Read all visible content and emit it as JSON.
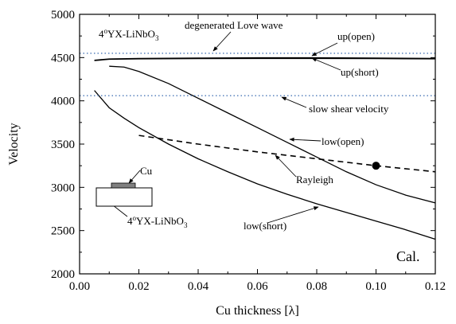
{
  "chart_data": {
    "type": "line",
    "title": "",
    "xlabel": "Cu thickness [λ]",
    "ylabel": "Velocity",
    "xlim": [
      0.0,
      0.12
    ],
    "ylim": [
      2000,
      5000
    ],
    "x_ticks": [
      "0.00",
      "0.02",
      "0.04",
      "0.06",
      "0.08",
      "0.10",
      "0.12"
    ],
    "y_ticks": [
      "2000",
      "2500",
      "3000",
      "3500",
      "4000",
      "4500",
      "5000"
    ],
    "grid": false,
    "legend": "none",
    "series": [
      {
        "name": "up(open)",
        "style": "solid",
        "color": "#000000",
        "x": [
          0.005,
          0.01,
          0.02,
          0.04,
          0.06,
          0.08,
          0.1,
          0.12
        ],
        "y": [
          4470,
          4485,
          4490,
          4495,
          4498,
          4498,
          4495,
          4490
        ]
      },
      {
        "name": "up(short)",
        "style": "solid",
        "color": "#000000",
        "x": [
          0.005,
          0.01,
          0.02,
          0.04,
          0.06,
          0.08,
          0.1,
          0.12
        ],
        "y": [
          4465,
          4480,
          4485,
          4488,
          4490,
          4490,
          4488,
          4485
        ]
      },
      {
        "name": "low(open)",
        "style": "solid",
        "color": "#000000",
        "x": [
          0.01,
          0.015,
          0.02,
          0.03,
          0.04,
          0.05,
          0.06,
          0.07,
          0.08,
          0.09,
          0.1,
          0.11,
          0.12
        ],
        "y": [
          4400,
          4390,
          4340,
          4200,
          4030,
          3860,
          3690,
          3520,
          3350,
          3180,
          3030,
          2910,
          2820
        ]
      },
      {
        "name": "low(short)",
        "style": "solid",
        "color": "#000000",
        "x": [
          0.005,
          0.01,
          0.015,
          0.02,
          0.03,
          0.04,
          0.05,
          0.06,
          0.07,
          0.08,
          0.09,
          0.1,
          0.11,
          0.12
        ],
        "y": [
          4120,
          3920,
          3800,
          3690,
          3500,
          3330,
          3180,
          3040,
          2920,
          2810,
          2710,
          2610,
          2510,
          2400
        ]
      },
      {
        "name": "Rayleigh",
        "style": "dashed",
        "color": "#000000",
        "x": [
          0.02,
          0.04,
          0.06,
          0.08,
          0.1,
          0.12
        ],
        "y": [
          3600,
          3500,
          3410,
          3330,
          3250,
          3180
        ]
      },
      {
        "name": "degenerated Love wave",
        "style": "dotted",
        "color": "#4a78b8",
        "x": [
          0.0,
          0.12
        ],
        "y": [
          4550,
          4550
        ]
      },
      {
        "name": "slow shear velocity",
        "style": "dotted",
        "color": "#4a78b8",
        "x": [
          0.0,
          0.12
        ],
        "y": [
          4060,
          4060
        ]
      }
    ],
    "markers": [
      {
        "x": 0.1,
        "y": 3250
      }
    ],
    "annotations": {
      "substrate_pre": "4",
      "substrate_sup": "o",
      "substrate_post": "YX-LiNbO",
      "substrate_sub": "3",
      "love_wave": "degenerated Love wave",
      "up_open": "up(open)",
      "up_short": "up(short)",
      "slow_shear": "slow shear velocity",
      "low_open": "low(open)",
      "rayleigh": "Rayleigh",
      "low_short": "low(short)",
      "cu": "Cu",
      "inset_pre": "4",
      "inset_sup": "o",
      "inset_post": "YX-LiNbO",
      "inset_sub": "3",
      "cal": "Cal."
    }
  }
}
